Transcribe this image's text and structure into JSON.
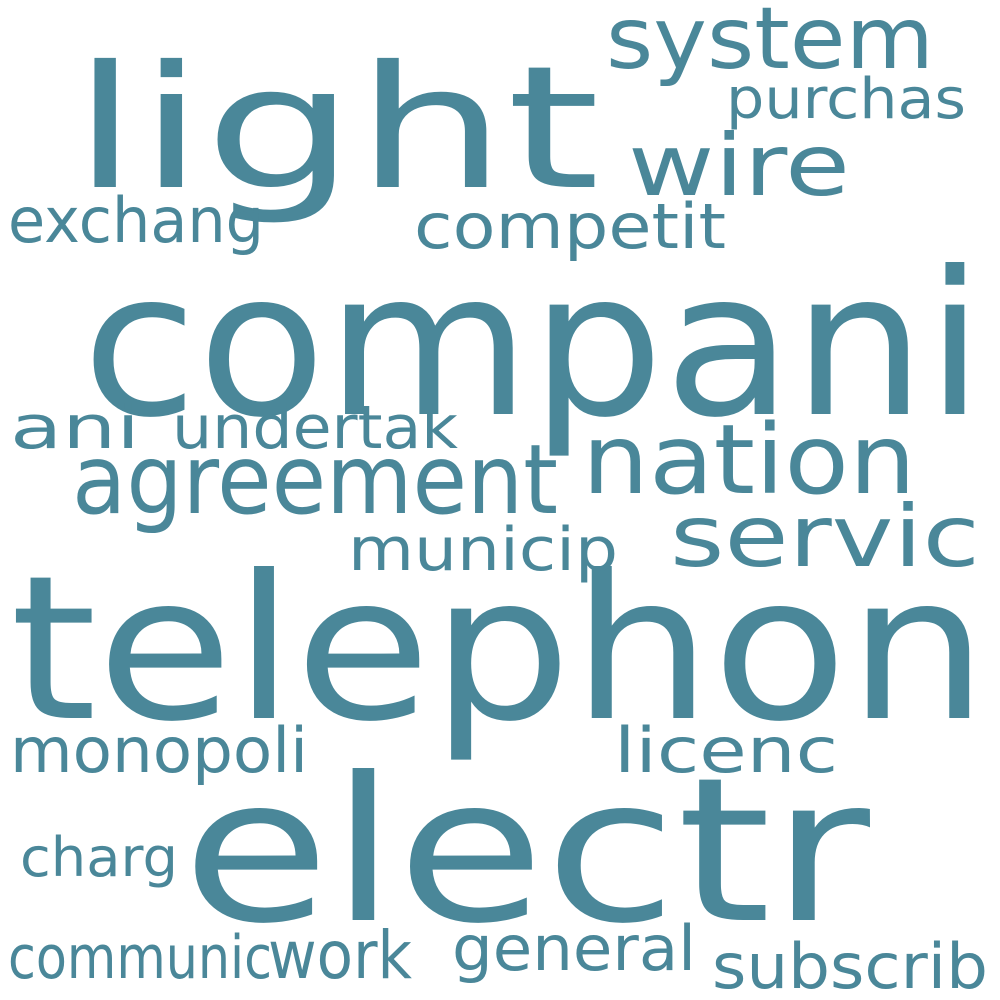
{
  "word_color": "#4a8799",
  "background_color": "#ffffff",
  "words": [
    {
      "text": "compani",
      "rank": 1
    },
    {
      "text": "telephon",
      "rank": 2
    },
    {
      "text": "electr",
      "rank": 3
    },
    {
      "text": "light",
      "rank": 4
    },
    {
      "text": "agreement",
      "rank": 5
    },
    {
      "text": "nation",
      "rank": 6
    },
    {
      "text": "system",
      "rank": 7
    },
    {
      "text": "wire",
      "rank": 8
    },
    {
      "text": "servic",
      "rank": 9
    },
    {
      "text": "competit",
      "rank": 10
    },
    {
      "text": "exchang",
      "rank": 11
    },
    {
      "text": "undertak",
      "rank": 12
    },
    {
      "text": "municip",
      "rank": 13
    },
    {
      "text": "monopoli",
      "rank": 14
    },
    {
      "text": "licenc",
      "rank": 15
    },
    {
      "text": "purchas",
      "rank": 16
    },
    {
      "text": "ani",
      "rank": 17
    },
    {
      "text": "charg",
      "rank": 18
    },
    {
      "text": "work",
      "rank": 19
    },
    {
      "text": "general",
      "rank": 20
    },
    {
      "text": "subscrib",
      "rank": 21
    },
    {
      "text": "communic",
      "rank": 22
    }
  ]
}
